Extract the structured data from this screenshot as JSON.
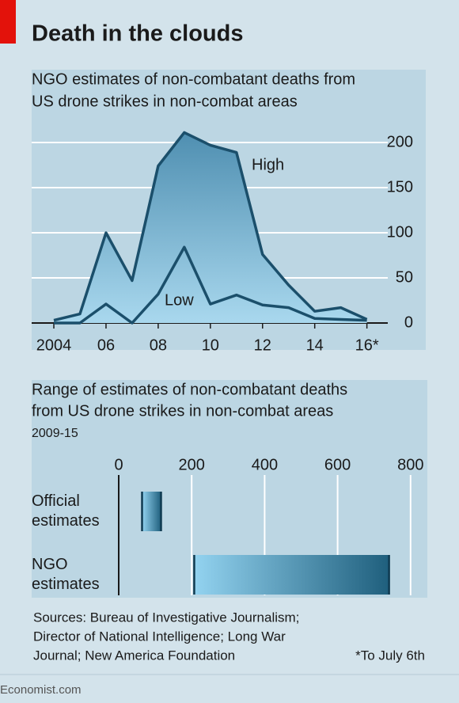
{
  "header": {
    "title": "Death in the clouds"
  },
  "chart_data": [
    {
      "type": "area-line",
      "title": [
        "NGO estimates of non-combatant deaths from",
        "US drone strikes in non-combat areas"
      ],
      "x": [
        2004,
        2005,
        2006,
        2007,
        2008,
        2009,
        2010,
        2011,
        2012,
        2013,
        2014,
        2015,
        2016
      ],
      "series": [
        {
          "name": "High",
          "color": "#1b4f6b",
          "values": [
            3,
            10,
            100,
            47,
            174,
            211,
            197,
            189,
            76,
            42,
            13,
            17,
            4
          ]
        },
        {
          "name": "Low",
          "color": "#1b4f6b",
          "values": [
            0,
            0,
            21,
            0,
            32,
            84,
            21,
            31,
            20,
            17,
            5,
            4,
            3
          ]
        }
      ],
      "xlim": [
        2003.15,
        2016.8
      ],
      "xticks": [
        2004,
        {
          "value": 2006,
          "label": "06"
        },
        {
          "value": 2008,
          "label": "08"
        },
        {
          "value": 2010,
          "label": "10"
        },
        {
          "value": 2012,
          "label": "12"
        },
        {
          "value": 2014,
          "label": "14"
        },
        {
          "value": 2016,
          "label": "16*"
        }
      ],
      "ylim": [
        0,
        230
      ],
      "yticks": [
        0,
        50,
        100,
        150,
        200
      ],
      "grid": true
    },
    {
      "type": "range-bar",
      "title": [
        "Range of estimates of non-combatant deaths",
        "from US drone strikes in non-combat areas"
      ],
      "subtitle": "2009-15",
      "categories": [
        "Official estimates",
        "NGO estimates"
      ],
      "low": [
        64,
        207
      ],
      "high": [
        116,
        741
      ],
      "xlim": [
        0,
        850
      ],
      "xticks": [
        0,
        200,
        400,
        600,
        800
      ],
      "grid": true
    }
  ],
  "footer": {
    "sources": [
      "Sources: Bureau of Investigative Journalism;",
      "Director of National Intelligence; Long War",
      "Journal; New America Foundation"
    ],
    "note": "*To July 6th",
    "brand": "Economist.com"
  }
}
